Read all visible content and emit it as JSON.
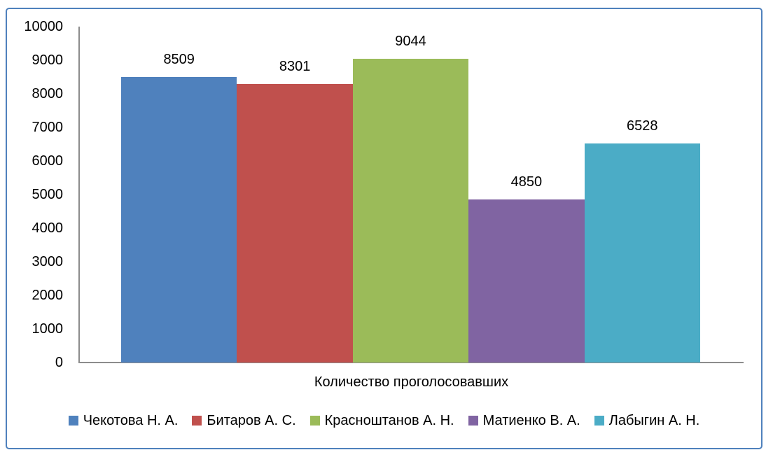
{
  "chart_data": {
    "type": "bar",
    "title": "",
    "xlabel": "Количество проголосовавших",
    "ylabel": "",
    "ylim": [
      0,
      10000
    ],
    "ytick_interval": 1000,
    "yticks": [
      0,
      1000,
      2000,
      3000,
      4000,
      5000,
      6000,
      7000,
      8000,
      9000,
      10000
    ],
    "categories": [
      "Количество проголосовавших"
    ],
    "series": [
      {
        "name": "Чекотова Н. А.",
        "values": [
          8509
        ],
        "color": "#4F81BD"
      },
      {
        "name": "Битаров А. С.",
        "values": [
          8301
        ],
        "color": "#C0504D"
      },
      {
        "name": "Красноштанов А. Н.",
        "values": [
          9044
        ],
        "color": "#9BBB59"
      },
      {
        "name": "Матиенко В. А.",
        "values": [
          4850
        ],
        "color": "#8064A2"
      },
      {
        "name": "Лабыгин А. Н.",
        "values": [
          6528
        ],
        "color": "#4BACC6"
      }
    ],
    "data_labels": [
      8509,
      8301,
      9044,
      4850,
      6528
    ],
    "legend_position": "bottom",
    "grid": false
  },
  "frame": {
    "border_color": "#4F81BD",
    "background": "#FFFFFF"
  },
  "axis": {
    "line_color": "#8C8C8C",
    "text_color": "#000000"
  }
}
